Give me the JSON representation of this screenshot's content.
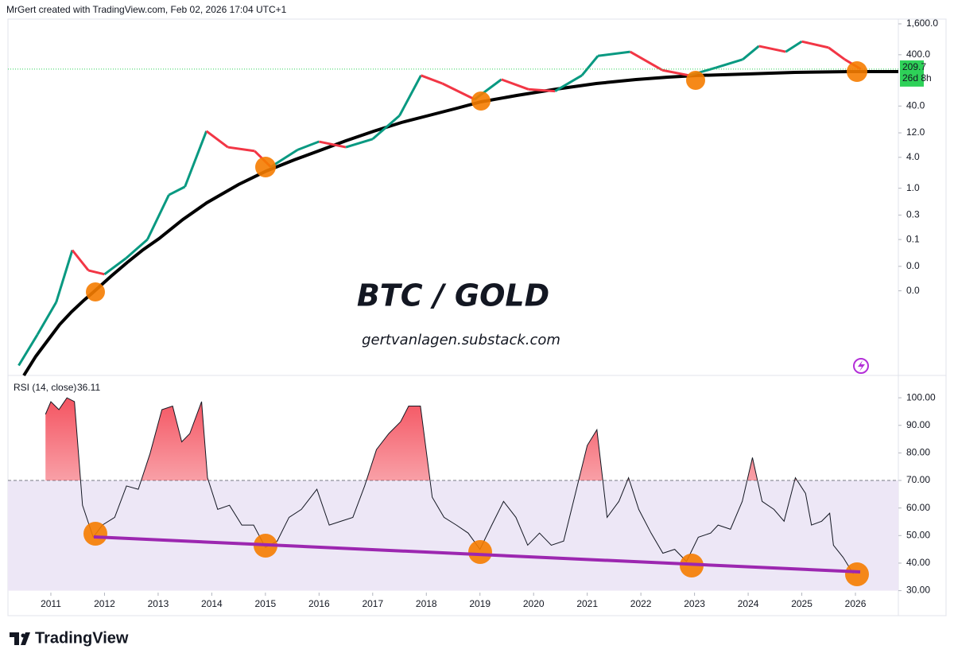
{
  "header": "MrGert created with TradingView.com, Feb 02, 2026 17:04 UTC+1",
  "title": "BTC / GOLD",
  "subtitle": "gertvanlagen.substack.com",
  "brand": "TradingView",
  "countdown": "26d 8h",
  "chart_data": [
    {
      "type": "line",
      "log_scale": true,
      "up_color": "#089981",
      "down_color": "#f23645",
      "last_color": "#2ed158",
      "x": [
        2010.4,
        2010.75,
        2011.1,
        2011.4,
        2011.7,
        2012.0,
        2012.4,
        2012.8,
        2013.2,
        2013.5,
        2013.9,
        2014.3,
        2014.8,
        2015.1,
        2015.6,
        2016.0,
        2016.5,
        2017.0,
        2017.5,
        2017.9,
        2018.3,
        2018.9,
        2019.4,
        2019.9,
        2020.4,
        2020.9,
        2021.2,
        2021.8,
        2022.4,
        2022.9,
        2023.4,
        2023.9,
        2024.2,
        2024.7,
        2025.0,
        2025.5,
        2025.8,
        2026.1
      ],
      "values": [
        0.00035,
        0.0014,
        0.006,
        0.062,
        0.025,
        0.021,
        0.043,
        0.1,
        0.74,
        1.07,
        13,
        6.3,
        5.3,
        2.6,
        5.6,
        8.1,
        6.3,
        9.1,
        26,
        158,
        110,
        54,
        132,
        85,
        78,
        158,
        380,
        457,
        200,
        158,
        224,
        324,
        590,
        457,
        725,
        550,
        324,
        209.7
      ],
      "xlim": [
        2010.2,
        2026.8
      ],
      "xticks": [
        2011,
        2012,
        2013,
        2014,
        2015,
        2016,
        2017,
        2018,
        2019,
        2020,
        2021,
        2022,
        2023,
        2024,
        2025,
        2026
      ],
      "ylim": [
        0.000224,
        3266
      ],
      "yticks": [
        {
          "value": 1600,
          "label": "1,600.0"
        },
        {
          "value": 400,
          "label": "400.0"
        },
        {
          "value": 40,
          "label": "40.0"
        },
        {
          "value": 12,
          "label": "12.0"
        },
        {
          "value": 4,
          "label": "4.0"
        },
        {
          "value": 1,
          "label": "1.0"
        },
        0.3,
        0.1,
        {
          "value": 0.03,
          "label": "0.0"
        },
        {
          "value": 0.01,
          "label": "0.0"
        }
      ]
    },
    {
      "type": "line",
      "title": "RSI (14, close)",
      "color": "#131722",
      "overbought": 70,
      "band": [
        30,
        70
      ],
      "band_color": "#ede7f6",
      "fill_color": "#f23645",
      "x": [
        2010.9,
        2011.0,
        2011.15,
        2011.3,
        2011.44,
        2011.59,
        2011.79,
        2011.96,
        2012.19,
        2012.41,
        2012.63,
        2012.85,
        2013.07,
        2013.27,
        2013.44,
        2013.59,
        2013.81,
        2013.92,
        2014.11,
        2014.33,
        2014.56,
        2014.78,
        2015.0,
        2015.22,
        2015.44,
        2015.67,
        2015.96,
        2016.19,
        2016.41,
        2016.63,
        2016.85,
        2017.07,
        2017.3,
        2017.52,
        2017.67,
        2017.89,
        2018.11,
        2018.33,
        2018.56,
        2018.78,
        2019.0,
        2019.22,
        2019.44,
        2019.67,
        2019.89,
        2020.11,
        2020.33,
        2020.56,
        2020.78,
        2021.0,
        2021.18,
        2021.37,
        2021.59,
        2021.77,
        2021.96,
        2022.19,
        2022.41,
        2022.63,
        2022.85,
        2023.07,
        2023.3,
        2023.44,
        2023.67,
        2023.89,
        2024.08,
        2024.26,
        2024.48,
        2024.67,
        2024.88,
        2025.07,
        2025.18,
        2025.37,
        2025.52,
        2025.59,
        2025.77,
        2025.96
      ],
      "values": [
        94,
        98.6,
        95.7,
        100,
        98.6,
        61,
        49.4,
        53.8,
        56.6,
        68,
        66.8,
        79.8,
        95.7,
        97,
        84,
        87,
        98.6,
        71,
        59.5,
        61,
        53.8,
        53.8,
        45.7,
        48,
        56.6,
        59.5,
        66.8,
        53.8,
        55.2,
        56.6,
        68,
        81.2,
        87,
        91.3,
        97,
        97,
        63.9,
        56.6,
        53.8,
        50.9,
        45,
        53.8,
        62.4,
        56.6,
        46.5,
        50.9,
        46.5,
        48,
        65.3,
        82.7,
        88.4,
        56.6,
        62.4,
        71,
        59.5,
        50.9,
        43.6,
        45,
        40.6,
        49.4,
        50.9,
        53.8,
        52.3,
        62.4,
        78.3,
        62.4,
        59.5,
        55.2,
        71,
        65.3,
        53.8,
        55.2,
        58.1,
        46.5,
        42.1,
        36.11
      ],
      "xlim": [
        2010.2,
        2026.8
      ],
      "ylim": [
        29.3,
        105.8
      ],
      "yticks": [
        {
          "value": 100,
          "label": "100.00"
        },
        {
          "value": 90,
          "label": "90.00"
        },
        {
          "value": 80,
          "label": "80.00"
        },
        {
          "value": 70,
          "label": "70.00"
        },
        {
          "value": 60,
          "label": "60.00"
        },
        {
          "value": 50,
          "label": "50.00"
        },
        {
          "value": 40,
          "label": "40.00"
        },
        {
          "value": 30,
          "label": "30.00"
        }
      ]
    }
  ]
}
